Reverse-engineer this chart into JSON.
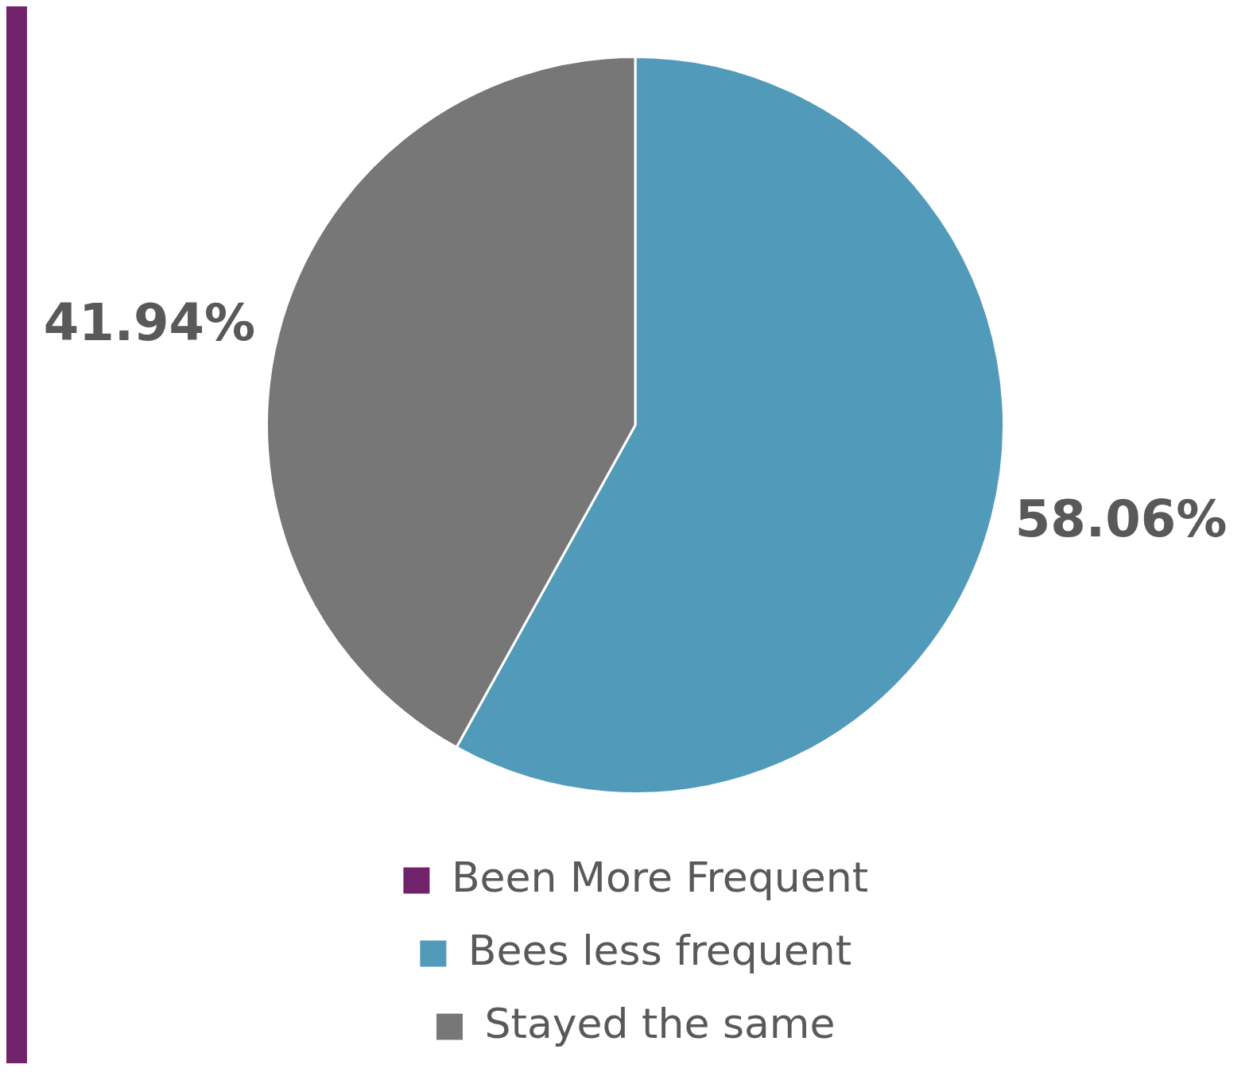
{
  "chart_data": {
    "type": "pie",
    "categories": [
      "Been More Frequent",
      "Bees less frequent",
      "Stayed the same"
    ],
    "values": [
      0,
      58.06,
      41.94
    ],
    "colors": [
      "#70236b",
      "#529ab9",
      "#777777"
    ],
    "value_labels": [
      null,
      "58.06%",
      "41.94%"
    ],
    "legend": "bottom"
  }
}
